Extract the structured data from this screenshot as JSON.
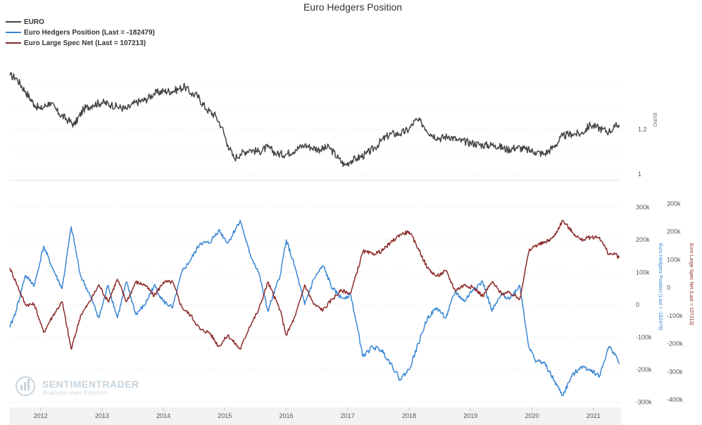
{
  "chart_data": {
    "title": "Euro Hedgers Position",
    "type": "line",
    "legend": {
      "placement": "top-left",
      "items": [
        {
          "label": "EURO",
          "color": "#444444"
        },
        {
          "label": "Euro Hedgers Position (Last = -182479)",
          "color": "#3a86d3"
        },
        {
          "label": "Euro Large Spec Net (Last = 107213)",
          "color": "#8b2a2a"
        }
      ]
    },
    "x_axis": {
      "ticks": [
        "2012",
        "2013",
        "2014",
        "2015",
        "2016",
        "2017",
        "2018",
        "2019",
        "2020",
        "2021"
      ],
      "range": [
        2011.5,
        2021.45
      ]
    },
    "panels": [
      {
        "name": "price",
        "y_axis": {
          "label": "EURO",
          "ticks": [
            "1.2",
            "1"
          ],
          "tick_values": [
            1.2,
            1.0
          ],
          "range": [
            0.985,
            1.5
          ],
          "side": "right"
        },
        "series": [
          {
            "name": "EURO",
            "color": "#444444",
            "x": [
              2011.5,
              2011.6,
              2011.75,
              2011.9,
              2012.0,
              2012.15,
              2012.3,
              2012.45,
              2012.55,
              2012.7,
              2012.85,
              2013.0,
              2013.15,
              2013.25,
              2013.4,
              2013.55,
              2013.7,
              2013.85,
              2014.0,
              2014.15,
              2014.25,
              2014.35,
              2014.45,
              2014.55,
              2014.7,
              2014.85,
              2014.95,
              2015.05,
              2015.15,
              2015.25,
              2015.4,
              2015.55,
              2015.7,
              2015.85,
              2016.0,
              2016.15,
              2016.3,
              2016.4,
              2016.55,
              2016.7,
              2016.85,
              2016.95,
              2017.05,
              2017.15,
              2017.3,
              2017.45,
              2017.55,
              2017.7,
              2017.85,
              2018.0,
              2018.1,
              2018.2,
              2018.35,
              2018.5,
              2018.65,
              2018.8,
              2019.0,
              2019.2,
              2019.4,
              2019.6,
              2019.75,
              2019.9,
              2020.05,
              2020.2,
              2020.35,
              2020.5,
              2020.65,
              2020.8,
              2020.95,
              2021.05,
              2021.15,
              2021.25,
              2021.35,
              2021.42
            ],
            "values": [
              1.44,
              1.43,
              1.37,
              1.31,
              1.29,
              1.32,
              1.27,
              1.24,
              1.22,
              1.29,
              1.31,
              1.32,
              1.31,
              1.3,
              1.29,
              1.32,
              1.33,
              1.36,
              1.37,
              1.37,
              1.38,
              1.39,
              1.36,
              1.35,
              1.29,
              1.26,
              1.21,
              1.13,
              1.07,
              1.09,
              1.11,
              1.1,
              1.12,
              1.09,
              1.09,
              1.11,
              1.13,
              1.12,
              1.11,
              1.12,
              1.07,
              1.04,
              1.06,
              1.07,
              1.09,
              1.12,
              1.15,
              1.18,
              1.18,
              1.2,
              1.24,
              1.23,
              1.18,
              1.16,
              1.17,
              1.15,
              1.14,
              1.13,
              1.13,
              1.11,
              1.12,
              1.11,
              1.1,
              1.09,
              1.12,
              1.17,
              1.18,
              1.18,
              1.22,
              1.21,
              1.2,
              1.19,
              1.21,
              1.22
            ]
          }
        ]
      },
      {
        "name": "positions",
        "y_axes": [
          {
            "label": "Euro Hedgers Position (Last = -182479)",
            "color": "#3a86d3",
            "ticks": [
              "300k",
              "200k",
              "100k",
              "0",
              "-100k",
              "-200k",
              "-300k"
            ],
            "tick_values": [
              300000,
              200000,
              100000,
              0,
              -100000,
              -200000,
              -300000
            ],
            "range": [
              -310000,
              320000
            ]
          },
          {
            "label": "Euro Large Spec Net (Last = 107213)",
            "color": "#8b2a2a",
            "ticks": [
              "300k",
              "200k",
              "100k",
              "0",
              "-100k",
              "-200k",
              "-300k",
              "-400k"
            ],
            "tick_values": [
              300000,
              200000,
              100000,
              0,
              -100000,
              -200000,
              -300000,
              -400000
            ],
            "range": [
              -420000,
              310000
            ]
          }
        ],
        "series": [
          {
            "name": "Euro Hedgers Position",
            "color": "#3a86d3",
            "axis": 0,
            "x": [
              2011.5,
              2011.6,
              2011.75,
              2011.9,
              2012.05,
              2012.2,
              2012.35,
              2012.5,
              2012.65,
              2012.8,
              2012.95,
              2013.1,
              2013.25,
              2013.4,
              2013.55,
              2013.7,
              2013.85,
              2014.0,
              2014.15,
              2014.3,
              2014.45,
              2014.6,
              2014.75,
              2014.9,
              2015.05,
              2015.25,
              2015.4,
              2015.55,
              2015.7,
              2015.9,
              2016.0,
              2016.15,
              2016.3,
              2016.45,
              2016.6,
              2016.75,
              2016.9,
              2017.05,
              2017.25,
              2017.4,
              2017.55,
              2017.7,
              2017.85,
              2018.0,
              2018.15,
              2018.3,
              2018.45,
              2018.6,
              2018.75,
              2018.9,
              2019.05,
              2019.2,
              2019.35,
              2019.5,
              2019.65,
              2019.8,
              2019.95,
              2020.05,
              2020.2,
              2020.35,
              2020.5,
              2020.65,
              2020.8,
              2020.95,
              2021.1,
              2021.25,
              2021.35,
              2021.42
            ],
            "values": [
              -70000,
              -20000,
              90000,
              60000,
              180000,
              110000,
              50000,
              240000,
              90000,
              30000,
              -40000,
              60000,
              -40000,
              70000,
              -30000,
              0,
              60000,
              10000,
              -10000,
              100000,
              140000,
              190000,
              190000,
              230000,
              190000,
              260000,
              160000,
              100000,
              -20000,
              90000,
              200000,
              110000,
              0,
              80000,
              120000,
              50000,
              20000,
              30000,
              -160000,
              -130000,
              -140000,
              -180000,
              -230000,
              -200000,
              -120000,
              -40000,
              -10000,
              -40000,
              40000,
              10000,
              50000,
              70000,
              -20000,
              30000,
              20000,
              60000,
              -130000,
              -170000,
              -180000,
              -230000,
              -280000,
              -220000,
              -190000,
              -200000,
              -220000,
              -130000,
              -150000,
              -182479
            ]
          },
          {
            "name": "Euro Large Spec Net",
            "color": "#8b2a2a",
            "axis": 1,
            "x": [
              2011.5,
              2011.6,
              2011.75,
              2011.9,
              2012.05,
              2012.2,
              2012.35,
              2012.5,
              2012.65,
              2012.8,
              2012.95,
              2013.1,
              2013.25,
              2013.4,
              2013.55,
              2013.7,
              2013.85,
              2014.0,
              2014.15,
              2014.3,
              2014.45,
              2014.6,
              2014.75,
              2014.9,
              2015.05,
              2015.25,
              2015.4,
              2015.55,
              2015.7,
              2015.9,
              2016.0,
              2016.15,
              2016.3,
              2016.45,
              2016.6,
              2016.75,
              2016.9,
              2017.05,
              2017.25,
              2017.4,
              2017.55,
              2017.7,
              2017.85,
              2018.0,
              2018.15,
              2018.3,
              2018.45,
              2018.6,
              2018.75,
              2018.9,
              2019.05,
              2019.2,
              2019.35,
              2019.5,
              2019.65,
              2019.8,
              2019.95,
              2020.05,
              2020.2,
              2020.35,
              2020.5,
              2020.65,
              2020.8,
              2020.95,
              2021.1,
              2021.25,
              2021.35,
              2021.42
            ],
            "values": [
              70000,
              20000,
              -60000,
              -60000,
              -160000,
              -100000,
              -50000,
              -220000,
              -100000,
              -50000,
              10000,
              -50000,
              30000,
              -50000,
              20000,
              10000,
              -30000,
              20000,
              20000,
              -70000,
              -100000,
              -150000,
              -160000,
              -210000,
              -170000,
              -220000,
              -140000,
              -80000,
              20000,
              -80000,
              -170000,
              -100000,
              10000,
              -60000,
              -80000,
              -40000,
              -10000,
              -20000,
              130000,
              120000,
              130000,
              160000,
              190000,
              200000,
              140000,
              70000,
              40000,
              60000,
              -10000,
              10000,
              0,
              -30000,
              20000,
              -20000,
              -20000,
              -40000,
              130000,
              150000,
              160000,
              180000,
              240000,
              200000,
              170000,
              180000,
              180000,
              120000,
              120000,
              107213
            ]
          }
        ]
      }
    ]
  },
  "watermark": {
    "brand": "SENTIMENTRADER",
    "tagline": "Analysis over Emotion"
  }
}
